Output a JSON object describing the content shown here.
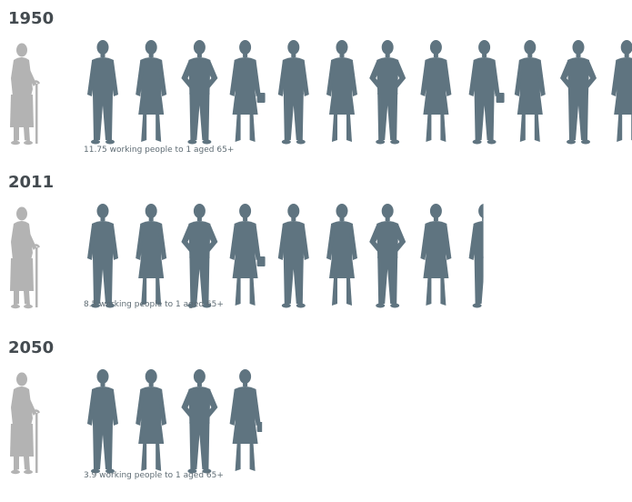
{
  "chart_data": {
    "type": "pictogram",
    "unit": "working people to 1 aged 65+",
    "categories": [
      "1950",
      "2011",
      "2050"
    ],
    "values": [
      11.75,
      8.5,
      3.9
    ],
    "captions": [
      "11.75 working people to 1 aged 65+",
      "8.5 working people to 1 aged 65+",
      "3.9 working people to 1 aged 65+"
    ],
    "colors": {
      "worker": "#5f7480",
      "elder": "#b3b3b3",
      "year_text": "#444b50",
      "caption_text": "#5f6c74"
    },
    "icons": {
      "worker": "person-silhouette-icon",
      "elder": "elderly-person-with-cane-icon"
    }
  }
}
